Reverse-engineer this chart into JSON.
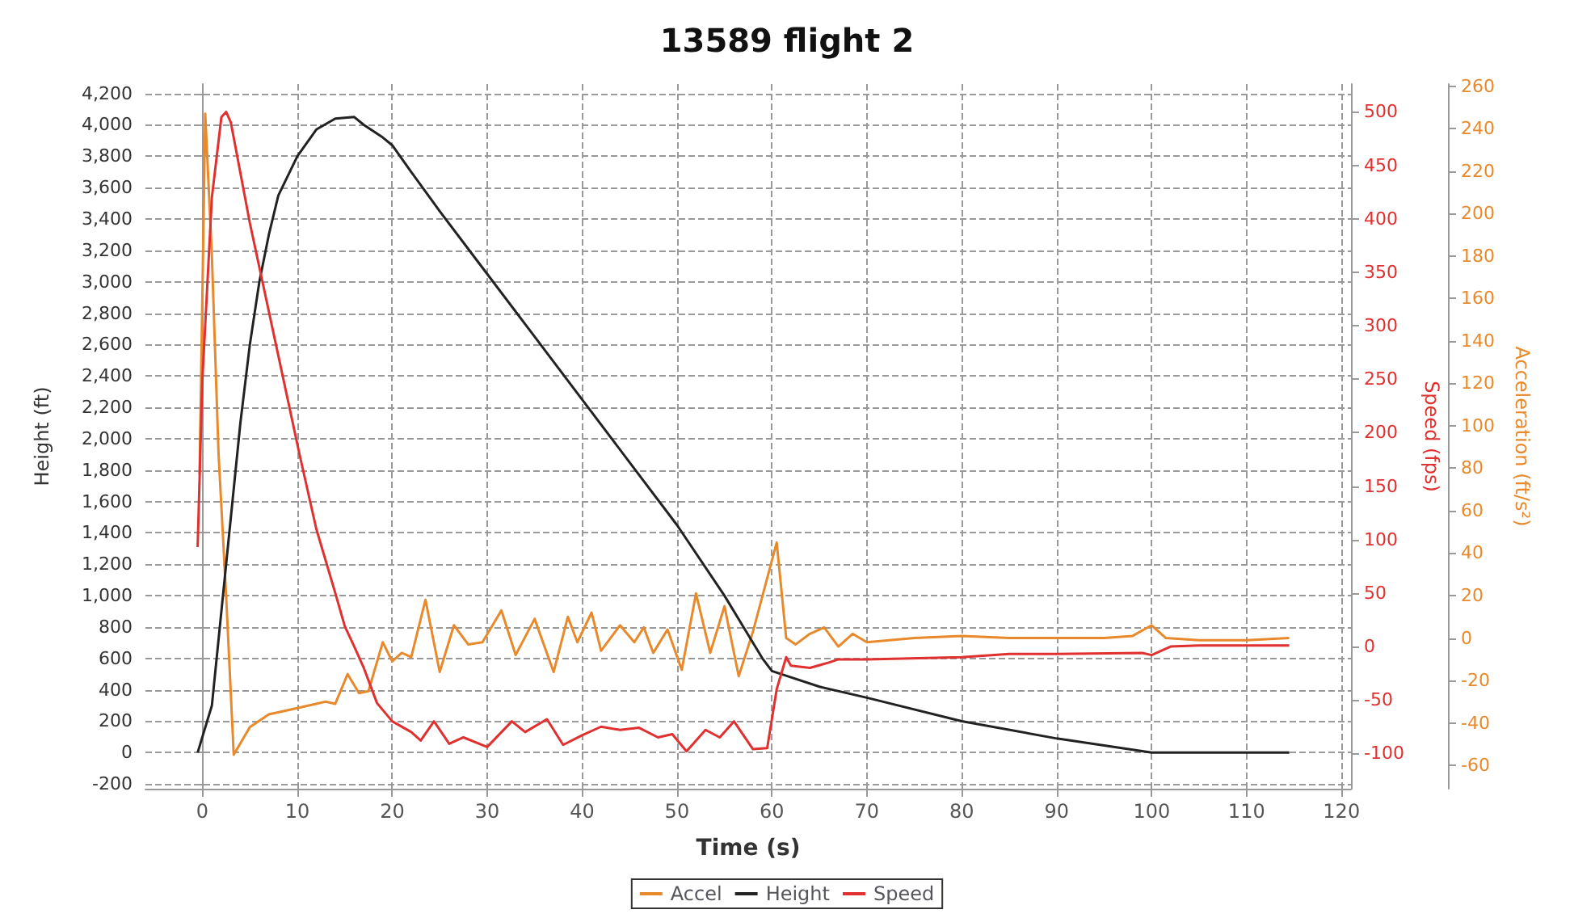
{
  "chart_data": {
    "type": "line",
    "title": "13589 flight 2",
    "xlabel": "Time (s)",
    "ylabel": "Height (ft)",
    "y2label": "Speed (fps)",
    "y3label": "Acceleration (ft/s²)",
    "xlim": [
      -6,
      121
    ],
    "xticks": [
      0,
      10,
      20,
      30,
      40,
      50,
      60,
      70,
      80,
      90,
      100,
      110,
      120
    ],
    "ylim": [
      -230,
      4260
    ],
    "yticks": [
      {
        "value": -200,
        "label": "-200"
      },
      {
        "value": 0,
        "label": "0"
      },
      {
        "value": 200,
        "label": "200"
      },
      {
        "value": 400,
        "label": "400"
      },
      {
        "value": 600,
        "label": "600"
      },
      {
        "value": 800,
        "label": "800"
      },
      {
        "value": 1000,
        "label": "1,000"
      },
      {
        "value": 1200,
        "label": "1,200"
      },
      {
        "value": 1400,
        "label": "1,400"
      },
      {
        "value": 1600,
        "label": "1,600"
      },
      {
        "value": 1800,
        "label": "1,800"
      },
      {
        "value": 2000,
        "label": "2,000"
      },
      {
        "value": 2200,
        "label": "2,200"
      },
      {
        "value": 2400,
        "label": "2,400"
      },
      {
        "value": 2600,
        "label": "2,600"
      },
      {
        "value": 2800,
        "label": "2,800"
      },
      {
        "value": 3000,
        "label": "3,000"
      },
      {
        "value": 3200,
        "label": "3,200"
      },
      {
        "value": 3400,
        "label": "3,400"
      },
      {
        "value": 3600,
        "label": "3,600"
      },
      {
        "value": 3800,
        "label": "3,800"
      },
      {
        "value": 4000,
        "label": "4,000"
      },
      {
        "value": 4200,
        "label": "4,200"
      }
    ],
    "y2lim": [
      -133,
      526
    ],
    "y2ticks": [
      -100,
      -50,
      0,
      50,
      100,
      150,
      200,
      250,
      300,
      350,
      400,
      450,
      500
    ],
    "y3lim": [
      -71,
      261
    ],
    "y3ticks": [
      -60,
      -40,
      -20,
      0,
      20,
      40,
      60,
      80,
      100,
      120,
      140,
      160,
      180,
      200,
      220,
      240,
      260
    ],
    "grid": true,
    "legend": "bottom",
    "marker": "none",
    "line_style": "solid",
    "series": [
      {
        "name": "Accel",
        "color": "#e8892b",
        "axis": "y3",
        "x": [
          -0.3,
          0.3,
          1,
          1.7,
          2.5,
          3.3,
          5,
          7,
          10,
          13,
          14,
          15.3,
          16.5,
          17.5,
          19,
          20,
          21,
          22,
          23.5,
          25,
          26.5,
          28,
          29.5,
          31.5,
          33,
          35,
          37,
          38.5,
          39.5,
          41,
          42,
          44,
          45.5,
          46.5,
          47.5,
          49,
          50.5,
          52,
          53.5,
          55,
          56.5,
          58,
          60.5,
          61.5,
          62.5,
          64,
          65.5,
          67,
          68.5,
          70,
          75,
          80,
          85,
          90,
          95,
          98,
          100,
          101.5,
          105,
          110,
          114.5
        ],
        "values": [
          77,
          247,
          180,
          87,
          20,
          -55,
          -42,
          -36,
          -33,
          -30,
          -31,
          -17,
          -26,
          -25,
          -2,
          -11,
          -7,
          -9,
          18,
          -16,
          6,
          -3,
          -2,
          13,
          -8,
          9,
          -16,
          10,
          -2,
          12,
          -6,
          6,
          -2,
          5,
          -7,
          4,
          -15,
          21,
          -7,
          15,
          -18,
          3,
          45,
          0,
          -3,
          2,
          5,
          -4,
          2,
          -2,
          0,
          1,
          0,
          0,
          0,
          1,
          6,
          0,
          -1,
          -1,
          0
        ]
      },
      {
        "name": "Height",
        "color": "#222222",
        "axis": "y",
        "x": [
          -0.5,
          1,
          2,
          3,
          4,
          5,
          6,
          7,
          8,
          10,
          12,
          14,
          16,
          17,
          19,
          20,
          22,
          25,
          30,
          35,
          40,
          45,
          50,
          55,
          57,
          59,
          60,
          62,
          65,
          70,
          80,
          90,
          100,
          114.5
        ],
        "values": [
          0,
          300,
          900,
          1500,
          2100,
          2600,
          3000,
          3300,
          3550,
          3800,
          3970,
          4040,
          4050,
          4000,
          3920,
          3870,
          3700,
          3450,
          3050,
          2650,
          2250,
          1850,
          1450,
          1000,
          800,
          600,
          520,
          480,
          420,
          350,
          200,
          90,
          0,
          0
        ]
      },
      {
        "name": "Speed",
        "color": "#e03030",
        "axis": "y2",
        "x": [
          -0.5,
          0,
          1,
          2,
          2.5,
          3,
          5,
          8,
          10.2,
          12,
          14,
          15,
          16,
          17,
          18.4,
          20,
          22,
          23,
          24.4,
          26,
          27.5,
          30,
          32.6,
          34,
          36.3,
          38,
          40,
          42,
          44,
          46,
          48,
          49.5,
          51,
          53,
          54.5,
          56,
          58,
          59.5,
          60.5,
          61.5,
          62,
          64,
          66,
          67,
          70,
          80,
          85,
          90,
          99,
          100,
          102,
          105,
          114.5
        ],
        "values": [
          93,
          250,
          420,
          495,
          500,
          490,
          396,
          272,
          181,
          110,
          50,
          19,
          0,
          -20,
          -53,
          -70,
          -80,
          -88,
          -70,
          -91,
          -85,
          -94,
          -70,
          -80,
          -68,
          -92,
          -83,
          -75,
          -78,
          -76,
          -85,
          -82,
          -98,
          -78,
          -85,
          -70,
          -96,
          -95,
          -40,
          -10,
          -18,
          -20,
          -15,
          -12,
          -12,
          -10,
          -7,
          -7,
          -6,
          -8,
          0,
          1,
          1
        ]
      }
    ]
  }
}
